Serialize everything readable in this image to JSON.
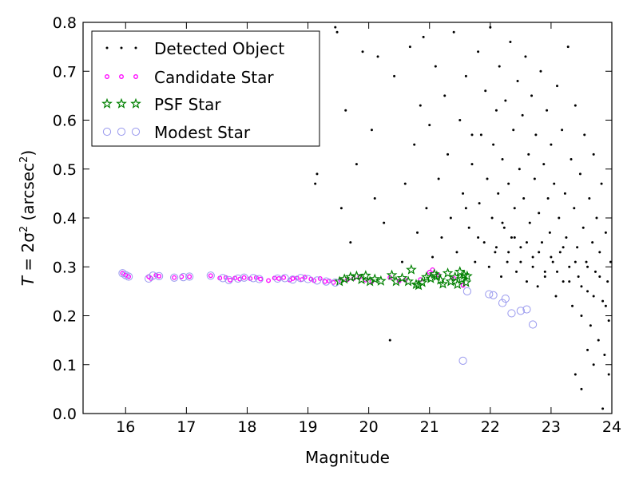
{
  "chart_data": {
    "type": "scatter",
    "xlabel": "Magnitude",
    "ylabel_parts": {
      "prefix": "T",
      "equals": " = 2σ",
      "sup": "2",
      "unit": " (arcsec",
      "unit_sup": "2",
      "close": ")"
    },
    "xlim": [
      15.3,
      24.0
    ],
    "ylim": [
      0.0,
      0.8
    ],
    "xticks": [
      "16",
      "17",
      "18",
      "19",
      "20",
      "21",
      "22",
      "23",
      "24"
    ],
    "yticks": [
      "0.0",
      "0.1",
      "0.2",
      "0.3",
      "0.4",
      "0.5",
      "0.6",
      "0.7",
      "0.8"
    ],
    "legend_position": "top-left",
    "grid": false,
    "series": [
      {
        "name": "Detected Object",
        "marker": "dot",
        "color": "#000000",
        "points": [
          [
            19.12,
            0.47
          ],
          [
            19.15,
            0.49
          ],
          [
            19.45,
            0.79
          ],
          [
            19.48,
            0.78
          ],
          [
            19.55,
            0.42
          ],
          [
            19.62,
            0.62
          ],
          [
            19.7,
            0.35
          ],
          [
            19.8,
            0.51
          ],
          [
            19.9,
            0.74
          ],
          [
            20.05,
            0.58
          ],
          [
            20.1,
            0.44
          ],
          [
            20.15,
            0.73
          ],
          [
            20.25,
            0.39
          ],
          [
            20.35,
            0.15
          ],
          [
            20.42,
            0.69
          ],
          [
            20.55,
            0.31
          ],
          [
            20.6,
            0.47
          ],
          [
            20.68,
            0.75
          ],
          [
            20.75,
            0.55
          ],
          [
            20.8,
            0.37
          ],
          [
            20.85,
            0.63
          ],
          [
            20.9,
            0.77
          ],
          [
            20.95,
            0.42
          ],
          [
            21.0,
            0.59
          ],
          [
            21.05,
            0.32
          ],
          [
            21.1,
            0.71
          ],
          [
            21.15,
            0.48
          ],
          [
            21.2,
            0.36
          ],
          [
            21.25,
            0.65
          ],
          [
            21.3,
            0.53
          ],
          [
            21.35,
            0.4
          ],
          [
            21.4,
            0.78
          ],
          [
            21.45,
            0.33
          ],
          [
            21.5,
            0.6
          ],
          [
            21.55,
            0.45
          ],
          [
            21.6,
            0.69
          ],
          [
            21.65,
            0.38
          ],
          [
            21.7,
            0.51
          ],
          [
            21.75,
            0.31
          ],
          [
            21.8,
            0.74
          ],
          [
            21.82,
            0.43
          ],
          [
            21.85,
            0.57
          ],
          [
            21.9,
            0.35
          ],
          [
            21.92,
            0.66
          ],
          [
            21.95,
            0.48
          ],
          [
            21.98,
            0.3
          ],
          [
            22.0,
            0.79
          ],
          [
            22.03,
            0.4
          ],
          [
            22.05,
            0.55
          ],
          [
            22.08,
            0.33
          ],
          [
            22.1,
            0.62
          ],
          [
            22.13,
            0.45
          ],
          [
            22.15,
            0.71
          ],
          [
            22.18,
            0.28
          ],
          [
            22.2,
            0.52
          ],
          [
            22.23,
            0.38
          ],
          [
            22.25,
            0.64
          ],
          [
            22.28,
            0.31
          ],
          [
            22.3,
            0.47
          ],
          [
            22.33,
            0.76
          ],
          [
            22.35,
            0.36
          ],
          [
            22.38,
            0.58
          ],
          [
            22.4,
            0.42
          ],
          [
            22.43,
            0.29
          ],
          [
            22.45,
            0.68
          ],
          [
            22.48,
            0.5
          ],
          [
            22.5,
            0.34
          ],
          [
            22.53,
            0.61
          ],
          [
            22.55,
            0.44
          ],
          [
            22.58,
            0.73
          ],
          [
            22.6,
            0.27
          ],
          [
            22.63,
            0.53
          ],
          [
            22.65,
            0.39
          ],
          [
            22.68,
            0.65
          ],
          [
            22.7,
            0.32
          ],
          [
            22.73,
            0.48
          ],
          [
            22.75,
            0.57
          ],
          [
            22.78,
            0.26
          ],
          [
            22.8,
            0.41
          ],
          [
            22.83,
            0.7
          ],
          [
            22.85,
            0.35
          ],
          [
            22.88,
            0.51
          ],
          [
            22.9,
            0.29
          ],
          [
            22.93,
            0.62
          ],
          [
            22.95,
            0.44
          ],
          [
            22.98,
            0.37
          ],
          [
            23.0,
            0.55
          ],
          [
            23.03,
            0.31
          ],
          [
            23.05,
            0.47
          ],
          [
            23.08,
            0.24
          ],
          [
            23.1,
            0.67
          ],
          [
            23.13,
            0.4
          ],
          [
            23.15,
            0.33
          ],
          [
            23.18,
            0.58
          ],
          [
            23.2,
            0.27
          ],
          [
            23.23,
            0.45
          ],
          [
            23.25,
            0.36
          ],
          [
            23.28,
            0.75
          ],
          [
            23.3,
            0.3
          ],
          [
            23.33,
            0.52
          ],
          [
            23.35,
            0.22
          ],
          [
            23.38,
            0.42
          ],
          [
            23.4,
            0.63
          ],
          [
            23.43,
            0.34
          ],
          [
            23.45,
            0.28
          ],
          [
            23.48,
            0.49
          ],
          [
            23.5,
            0.2
          ],
          [
            23.53,
            0.38
          ],
          [
            23.55,
            0.57
          ],
          [
            23.58,
            0.31
          ],
          [
            23.6,
            0.25
          ],
          [
            23.63,
            0.44
          ],
          [
            23.65,
            0.18
          ],
          [
            23.68,
            0.35
          ],
          [
            23.7,
            0.53
          ],
          [
            23.73,
            0.29
          ],
          [
            23.75,
            0.4
          ],
          [
            23.78,
            0.15
          ],
          [
            23.8,
            0.33
          ],
          [
            23.83,
            0.47
          ],
          [
            23.85,
            0.23
          ],
          [
            23.88,
            0.12
          ],
          [
            23.9,
            0.37
          ],
          [
            23.93,
            0.27
          ],
          [
            23.95,
            0.19
          ],
          [
            23.98,
            0.31
          ],
          [
            21.6,
            0.42
          ],
          [
            21.7,
            0.57
          ],
          [
            21.8,
            0.36
          ],
          [
            22.1,
            0.34
          ],
          [
            22.2,
            0.39
          ],
          [
            22.3,
            0.33
          ],
          [
            22.4,
            0.36
          ],
          [
            22.5,
            0.31
          ],
          [
            22.6,
            0.35
          ],
          [
            22.7,
            0.3
          ],
          [
            22.8,
            0.33
          ],
          [
            22.9,
            0.28
          ],
          [
            23.0,
            0.32
          ],
          [
            23.1,
            0.29
          ],
          [
            23.2,
            0.34
          ],
          [
            23.3,
            0.27
          ],
          [
            23.4,
            0.31
          ],
          [
            23.5,
            0.26
          ],
          [
            23.6,
            0.3
          ],
          [
            23.7,
            0.24
          ],
          [
            23.8,
            0.28
          ],
          [
            23.9,
            0.22
          ],
          [
            23.4,
            0.08
          ],
          [
            23.5,
            0.05
          ],
          [
            23.85,
            0.01
          ],
          [
            23.95,
            0.08
          ],
          [
            23.7,
            0.1
          ],
          [
            23.6,
            0.13
          ]
        ]
      },
      {
        "name": "Candidate Star",
        "marker": "circle-small",
        "color": "#ff00ff",
        "points": [
          [
            15.95,
            0.287
          ],
          [
            16.0,
            0.283
          ],
          [
            16.05,
            0.28
          ],
          [
            16.38,
            0.28
          ],
          [
            16.42,
            0.276
          ],
          [
            16.5,
            0.283
          ],
          [
            16.55,
            0.281
          ],
          [
            16.8,
            0.278
          ],
          [
            16.92,
            0.28
          ],
          [
            17.05,
            0.28
          ],
          [
            17.4,
            0.282
          ],
          [
            17.55,
            0.277
          ],
          [
            17.65,
            0.278
          ],
          [
            17.72,
            0.273
          ],
          [
            17.8,
            0.277
          ],
          [
            17.88,
            0.275
          ],
          [
            17.95,
            0.278
          ],
          [
            18.05,
            0.276
          ],
          [
            18.15,
            0.278
          ],
          [
            18.22,
            0.275
          ],
          [
            18.35,
            0.272
          ],
          [
            18.45,
            0.277
          ],
          [
            18.52,
            0.276
          ],
          [
            18.6,
            0.278
          ],
          [
            18.7,
            0.273
          ],
          [
            18.75,
            0.276
          ],
          [
            18.82,
            0.277
          ],
          [
            18.9,
            0.274
          ],
          [
            18.95,
            0.279
          ],
          [
            19.05,
            0.275
          ],
          [
            19.1,
            0.272
          ],
          [
            19.2,
            0.276
          ],
          [
            19.28,
            0.27
          ],
          [
            19.35,
            0.271
          ],
          [
            19.42,
            0.268
          ],
          [
            19.55,
            0.272
          ],
          [
            19.65,
            0.274
          ],
          [
            19.75,
            0.276
          ],
          [
            19.85,
            0.279
          ],
          [
            19.95,
            0.273
          ],
          [
            20.05,
            0.27
          ],
          [
            20.35,
            0.278
          ],
          [
            20.5,
            0.271
          ],
          [
            20.6,
            0.273
          ],
          [
            20.85,
            0.274
          ],
          [
            21.0,
            0.289
          ],
          [
            21.05,
            0.294
          ],
          [
            21.15,
            0.283
          ],
          [
            21.4,
            0.276
          ],
          [
            21.55,
            0.262
          ]
        ]
      },
      {
        "name": "PSF Star",
        "marker": "star",
        "color": "#008000",
        "points": [
          [
            19.52,
            0.27
          ],
          [
            19.6,
            0.275
          ],
          [
            19.7,
            0.279
          ],
          [
            19.8,
            0.281
          ],
          [
            19.88,
            0.274
          ],
          [
            19.95,
            0.282
          ],
          [
            20.02,
            0.27
          ],
          [
            20.1,
            0.275
          ],
          [
            20.2,
            0.271
          ],
          [
            20.38,
            0.283
          ],
          [
            20.45,
            0.27
          ],
          [
            20.55,
            0.277
          ],
          [
            20.65,
            0.27
          ],
          [
            20.7,
            0.294
          ],
          [
            20.78,
            0.264
          ],
          [
            20.82,
            0.262
          ],
          [
            20.88,
            0.268
          ],
          [
            20.95,
            0.279
          ],
          [
            21.02,
            0.276
          ],
          [
            21.08,
            0.285
          ],
          [
            21.12,
            0.281
          ],
          [
            21.18,
            0.273
          ],
          [
            21.22,
            0.265
          ],
          [
            21.3,
            0.287
          ],
          [
            21.35,
            0.27
          ],
          [
            21.42,
            0.279
          ],
          [
            21.46,
            0.264
          ],
          [
            21.5,
            0.29
          ],
          [
            21.53,
            0.275
          ],
          [
            21.57,
            0.283
          ],
          [
            21.6,
            0.268
          ],
          [
            21.62,
            0.281
          ]
        ]
      },
      {
        "name": "Modest Star",
        "marker": "circle-large",
        "color": "#9999ee",
        "points": [
          [
            15.95,
            0.287
          ],
          [
            16.0,
            0.283
          ],
          [
            16.05,
            0.28
          ],
          [
            16.38,
            0.276
          ],
          [
            16.45,
            0.282
          ],
          [
            16.55,
            0.281
          ],
          [
            16.8,
            0.278
          ],
          [
            16.95,
            0.279
          ],
          [
            17.05,
            0.28
          ],
          [
            17.4,
            0.282
          ],
          [
            17.6,
            0.277
          ],
          [
            17.7,
            0.273
          ],
          [
            17.85,
            0.276
          ],
          [
            17.95,
            0.278
          ],
          [
            18.1,
            0.277
          ],
          [
            18.2,
            0.275
          ],
          [
            18.5,
            0.276
          ],
          [
            18.62,
            0.277
          ],
          [
            18.75,
            0.274
          ],
          [
            18.88,
            0.277
          ],
          [
            19.0,
            0.275
          ],
          [
            19.15,
            0.272
          ],
          [
            19.3,
            0.27
          ],
          [
            19.45,
            0.268
          ],
          [
            21.62,
            0.25
          ],
          [
            21.98,
            0.244
          ],
          [
            22.05,
            0.242
          ],
          [
            22.2,
            0.226
          ],
          [
            22.25,
            0.235
          ],
          [
            22.35,
            0.205
          ],
          [
            22.5,
            0.21
          ],
          [
            22.6,
            0.213
          ],
          [
            22.7,
            0.182
          ],
          [
            21.55,
            0.108
          ]
        ]
      }
    ]
  }
}
